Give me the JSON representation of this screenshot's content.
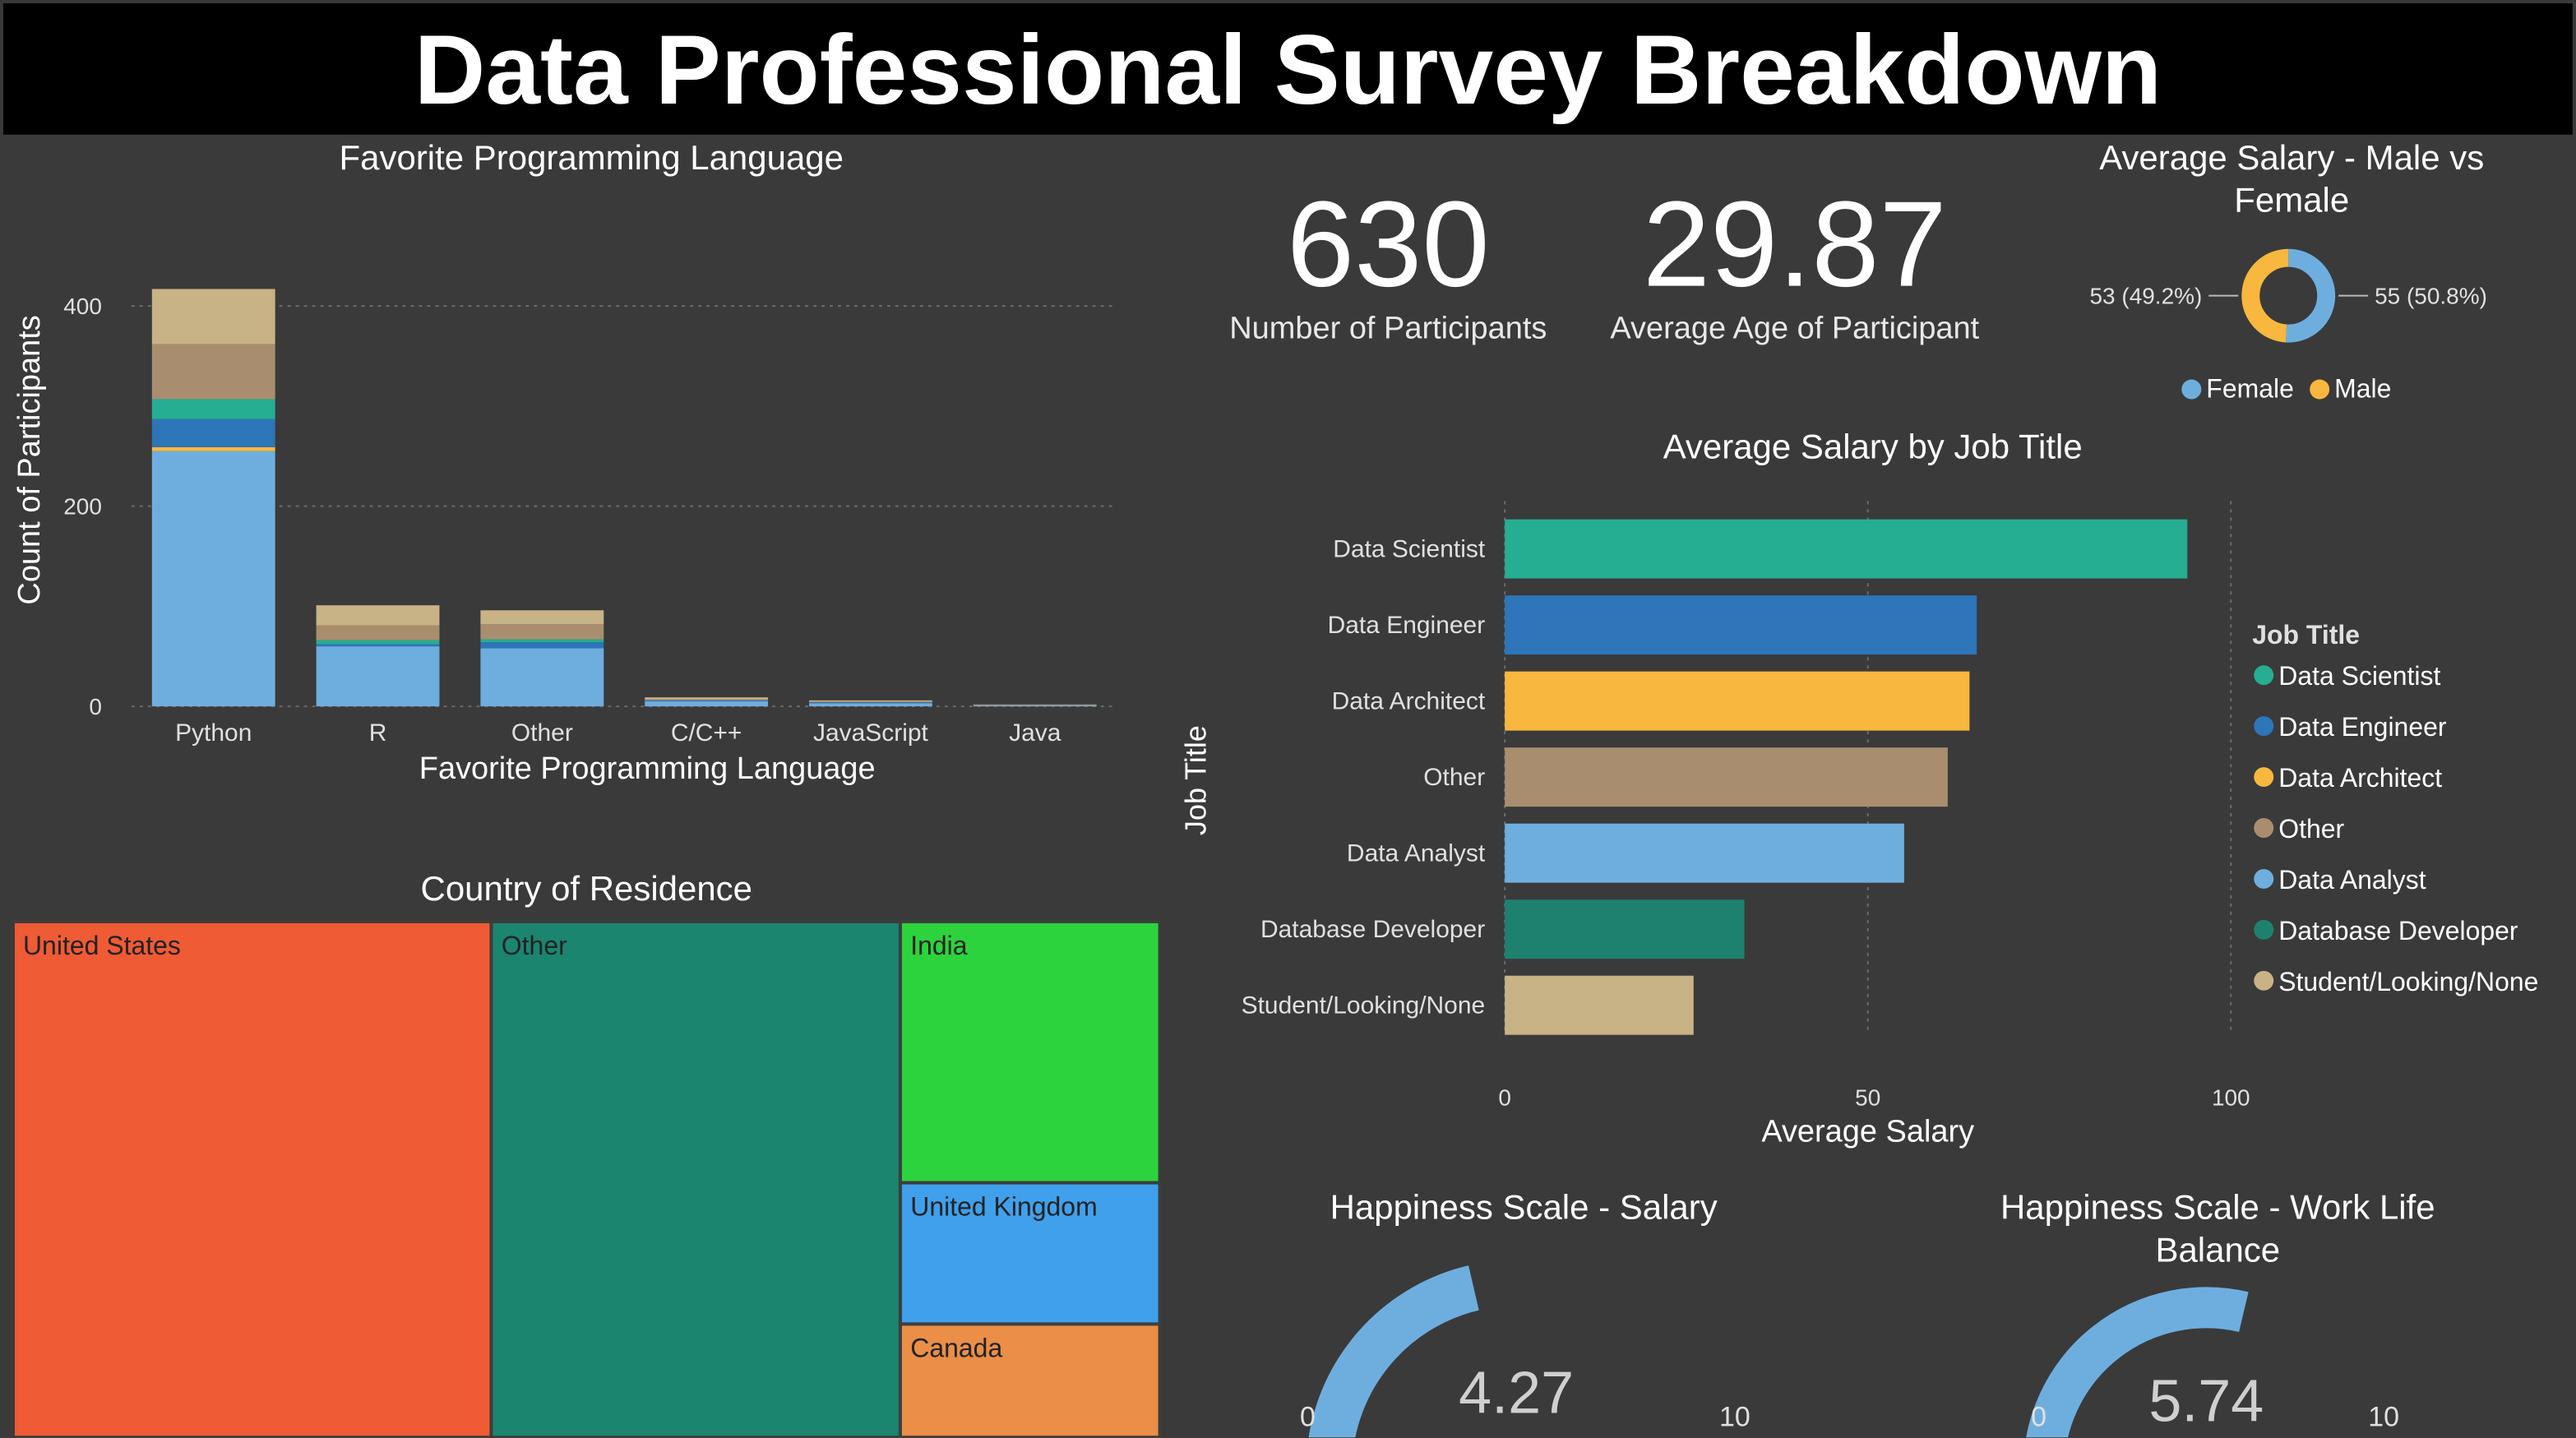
{
  "header": {
    "title": "Data Professional Survey Breakdown"
  },
  "kpis": {
    "participants": {
      "value": "630",
      "label": "Number of Participants"
    },
    "avg_age": {
      "value": "29.87",
      "label": "Average Age of Participant"
    }
  },
  "colors": {
    "background": "#3a3a3a",
    "header": "#000000",
    "data_scientist": "#25AE92",
    "data_engineer": "#2E75B9",
    "data_architect": "#F8B73E",
    "other": "#A88E6F",
    "data_analyst": "#6EAEDF",
    "database_developer": "#1E8170",
    "student": "#C8B386",
    "female": "#6EAEDF",
    "male": "#F8B73E"
  },
  "chart_data": [
    {
      "id": "favorite_language",
      "type": "bar",
      "stacked": true,
      "title": "Favorite Programming Language",
      "xlabel": "Favorite Programming Language",
      "ylabel": "Count of Participants",
      "ylim": [
        0,
        430
      ],
      "yticks": [
        0,
        200,
        400
      ],
      "categories": [
        "Python",
        "R",
        "Other",
        "C/C++",
        "JavaScript",
        "Java"
      ],
      "series": [
        {
          "key": "data_analyst",
          "values": [
            255,
            60,
            58,
            5,
            3,
            1
          ]
        },
        {
          "key": "data_architect",
          "values": [
            4,
            0,
            0,
            0,
            0,
            0
          ]
        },
        {
          "key": "data_engineer",
          "values": [
            28,
            2,
            6,
            1,
            1,
            0
          ]
        },
        {
          "key": "data_scientist",
          "values": [
            20,
            4,
            3,
            0,
            0,
            0
          ]
        },
        {
          "key": "other",
          "values": [
            55,
            15,
            15,
            1,
            1,
            1
          ]
        },
        {
          "key": "student",
          "values": [
            55,
            20,
            14,
            2,
            1,
            0
          ]
        }
      ],
      "grid": true
    },
    {
      "id": "salary_by_gender",
      "type": "pie",
      "donut": true,
      "title": "Average Salary - Male vs Female",
      "slices": [
        {
          "label": "Female",
          "value": 55,
          "display": "55 (50.8%)",
          "color": "#6EAEDF"
        },
        {
          "label": "Male",
          "value": 53,
          "display": "53 (49.2%)",
          "color": "#F8B73E"
        }
      ],
      "legend": [
        "Female",
        "Male"
      ],
      "legend_position": "bottom"
    },
    {
      "id": "salary_by_job",
      "type": "bar",
      "orientation": "horizontal",
      "title": "Average Salary by Job Title",
      "xlabel": "Average Salary",
      "ylabel": "Job Title",
      "xlim": [
        0,
        100
      ],
      "xticks": [
        0,
        50,
        100
      ],
      "categories": [
        "Data Scientist",
        "Data Engineer",
        "Data Architect",
        "Other",
        "Data Analyst",
        "Database Developer",
        "Student/Looking/None"
      ],
      "values": [
        94,
        65,
        64,
        61,
        55,
        33,
        26
      ],
      "legend_title": "Job Title",
      "legend_position": "right",
      "grid": true
    },
    {
      "id": "country_treemap",
      "type": "treemap",
      "title": "Country of Residence",
      "items": [
        {
          "label": "United States",
          "value": 262,
          "color": "#EF5B34"
        },
        {
          "label": "Other",
          "value": 224,
          "color": "#1B8570"
        },
        {
          "label": "India",
          "value": 72,
          "color": "#2DD33C"
        },
        {
          "label": "United Kingdom",
          "value": 39,
          "color": "#40A0EC"
        },
        {
          "label": "Canada",
          "value": 31,
          "color": "#EA8E48"
        }
      ]
    },
    {
      "id": "happiness_salary",
      "type": "gauge",
      "title": "Happiness Scale - Salary",
      "value": 4.27,
      "min": 0,
      "max": 10,
      "min_label": "0",
      "max_label": "10",
      "value_label": "4.27"
    },
    {
      "id": "happiness_wlb",
      "type": "gauge",
      "title": "Happiness Scale - Work Life Balance",
      "value": 5.74,
      "min": 0,
      "max": 10,
      "min_label": "0",
      "max_label": "10",
      "value_label": "5.74"
    }
  ]
}
